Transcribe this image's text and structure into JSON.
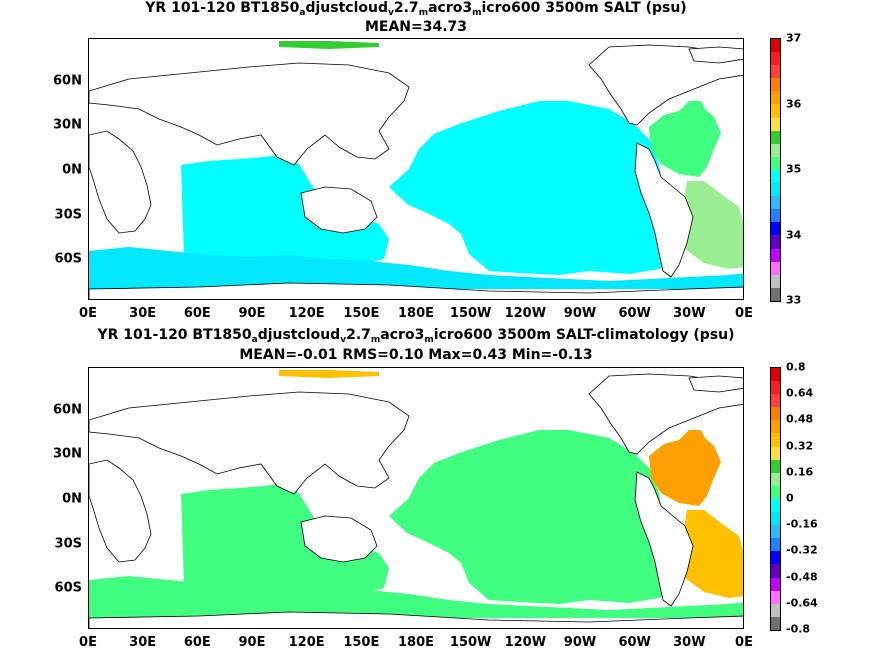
{
  "chart_data": [
    {
      "type": "heatmap",
      "title_parts": [
        "YR 101-120 BT1850",
        "a",
        "djustcloud",
        "v",
        "2.7",
        "m",
        "acro3",
        "m",
        "icro600 3500m SALT (psu)"
      ],
      "subtitle": "MEAN=34.73",
      "x_ticks": [
        "0E",
        "30E",
        "60E",
        "90E",
        "120E",
        "150E",
        "180E",
        "150W",
        "120W",
        "90W",
        "60W",
        "30W",
        "0E"
      ],
      "y_ticks": [
        "60N",
        "30N",
        "0N",
        "30S",
        "60S"
      ],
      "colorbar": {
        "labels": [
          "37",
          "36",
          "35",
          "34",
          "33"
        ],
        "colors": [
          "#e00000",
          "#f02020",
          "#ff4040",
          "#ff7f00",
          "#ffa000",
          "#ffc000",
          "#ffe040",
          "#32cd32",
          "#98ee90",
          "#40ff80",
          "#00ffff",
          "#00e8ff",
          "#30b8ff",
          "#2080ff",
          "#0000ff",
          "#6000c0",
          "#c000ff",
          "#ff70ff",
          "#c0c0c0",
          "#707070"
        ]
      },
      "fields": [
        {
          "region": "Pacific basin",
          "color": "#00ffff"
        },
        {
          "region": "Indian Ocean",
          "color": "#00ffff"
        },
        {
          "region": "Southern Ocean",
          "color": "#00e8ff"
        },
        {
          "region": "North Atlantic",
          "color": "#40ff80"
        },
        {
          "region": "South Atlantic",
          "color": "#98ee90"
        },
        {
          "region": "Arctic",
          "color": "#32cd32"
        }
      ]
    },
    {
      "type": "heatmap",
      "title_parts": [
        "YR 101-120 BT1850",
        "a",
        "djustcloud",
        "v",
        "2.7",
        "m",
        "acro3",
        "m",
        "icro600 3500m SALT-climatology (psu)"
      ],
      "subtitle": "MEAN=-0.01   RMS=0.10   Max=0.43   Min=-0.13",
      "x_ticks": [
        "0E",
        "30E",
        "60E",
        "90E",
        "120E",
        "150E",
        "180E",
        "150W",
        "120W",
        "90W",
        "60W",
        "30W",
        "0E"
      ],
      "y_ticks": [
        "60N",
        "30N",
        "0N",
        "30S",
        "60S"
      ],
      "colorbar": {
        "labels": [
          "0.8",
          "0.64",
          "0.48",
          "0.32",
          "0.16",
          "0",
          "-0.16",
          "-0.32",
          "-0.48",
          "-0.64",
          "-0.8"
        ],
        "colors": [
          "#e00000",
          "#f02020",
          "#ff4040",
          "#ff7f00",
          "#ffa000",
          "#ffc000",
          "#ffe040",
          "#32cd32",
          "#98ee90",
          "#40ff80",
          "#00ffff",
          "#00e8ff",
          "#30b8ff",
          "#2080ff",
          "#0000ff",
          "#6000c0",
          "#c000ff",
          "#ff70ff",
          "#c0c0c0",
          "#707070"
        ]
      },
      "fields": [
        {
          "region": "Pacific basin",
          "color": "#40ff80"
        },
        {
          "region": "Indian Ocean",
          "color": "#40ff80"
        },
        {
          "region": "Southern Ocean",
          "color": "#40ff80"
        },
        {
          "region": "North Atlantic",
          "color": "#ffa000"
        },
        {
          "region": "South Atlantic",
          "color": "#ffc000"
        },
        {
          "region": "Arctic",
          "color": "#ffc000"
        }
      ]
    }
  ]
}
